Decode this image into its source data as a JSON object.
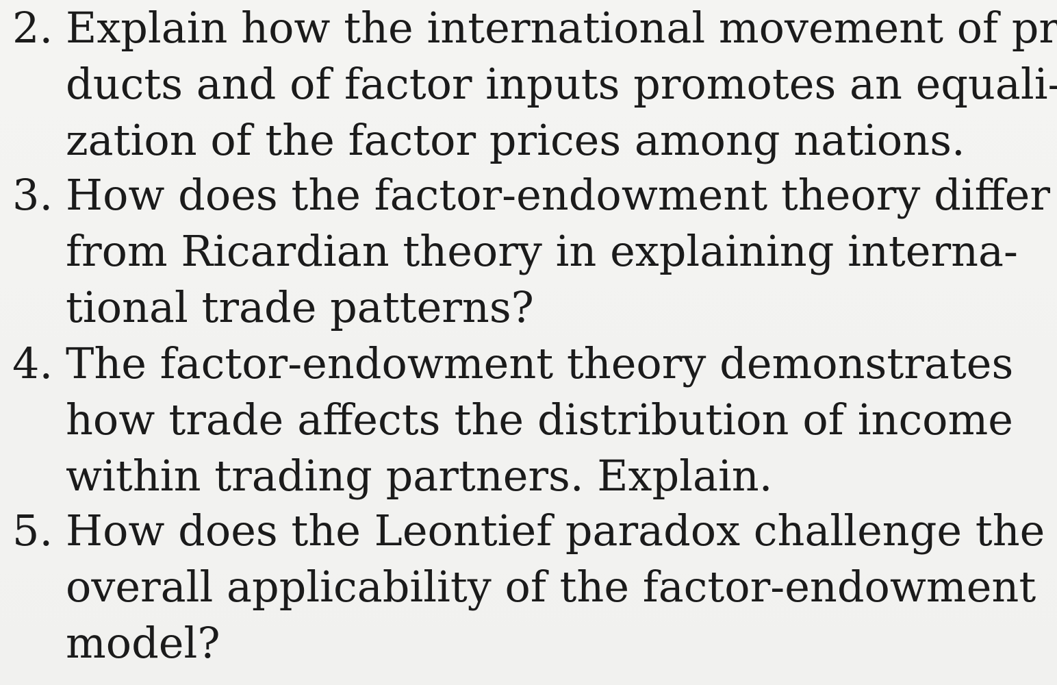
{
  "questions": [
    {
      "number": "2.",
      "lines": [
        "Explain how the international movement of pro-",
        "ducts and of factor inputs promotes an equali-",
        "zation of the factor prices among nations."
      ]
    },
    {
      "number": "3.",
      "lines": [
        "How does the factor-endowment theory differ",
        "from Ricardian theory in explaining interna-",
        "tional trade patterns?"
      ]
    },
    {
      "number": "4.",
      "lines": [
        "The factor-endowment theory demonstrates",
        "how trade affects the distribution of income",
        "within trading partners. Explain."
      ]
    },
    {
      "number": "5.",
      "lines": [
        "How does the Leontief paradox challenge the",
        "overall applicability of the factor-endowment",
        "model?"
      ]
    }
  ]
}
